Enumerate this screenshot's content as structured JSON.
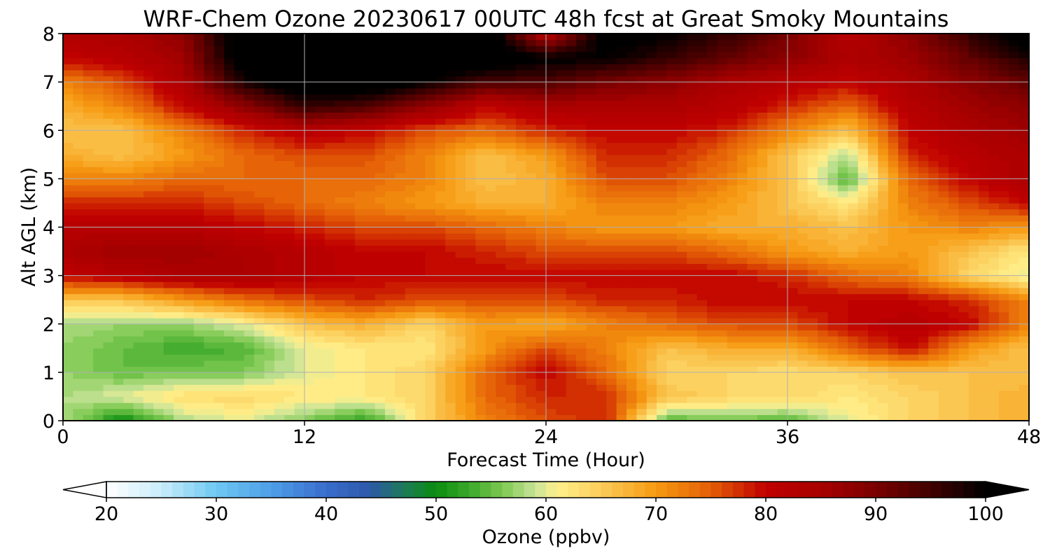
{
  "chart_data": {
    "type": "heatmap",
    "title": "WRF-Chem Ozone  20230617 00UTC 48h fcst at Great Smoky Mountains",
    "xlabel": "Forecast Time (Hour)",
    "ylabel": "Alt AGL (km)",
    "xlim": [
      0,
      48
    ],
    "ylim": [
      0,
      8
    ],
    "x_ticks": [
      0,
      12,
      24,
      36,
      48
    ],
    "y_ticks": [
      0,
      1,
      2,
      3,
      4,
      5,
      6,
      7,
      8
    ],
    "grid": true,
    "x": [
      0,
      3,
      6,
      9,
      12,
      15,
      18,
      21,
      24,
      27,
      30,
      33,
      36,
      39,
      42,
      45,
      48
    ],
    "y": [
      0,
      0.5,
      1,
      1.5,
      2,
      2.5,
      3,
      3.5,
      4,
      4.5,
      5,
      5.5,
      6,
      6.5,
      7,
      7.5,
      8
    ],
    "z": [
      [
        58,
        50,
        58,
        60,
        56,
        52,
        64,
        72,
        76,
        78,
        54,
        56,
        54,
        60,
        64,
        66,
        68
      ],
      [
        58,
        60,
        63,
        64,
        62,
        62,
        64,
        74,
        78,
        78,
        66,
        64,
        64,
        62,
        64,
        66,
        68
      ],
      [
        57,
        55,
        56,
        56,
        60,
        62,
        64,
        74,
        80,
        74,
        64,
        64,
        63,
        64,
        66,
        66,
        66
      ],
      [
        57,
        55,
        53,
        54,
        60,
        62,
        62,
        70,
        76,
        72,
        66,
        68,
        68,
        74,
        80,
        70,
        66
      ],
      [
        58,
        57,
        57,
        60,
        66,
        68,
        64,
        70,
        68,
        72,
        74,
        76,
        76,
        80,
        82,
        80,
        72
      ],
      [
        66,
        66,
        70,
        74,
        76,
        78,
        76,
        76,
        76,
        78,
        78,
        80,
        80,
        80,
        80,
        78,
        72
      ],
      [
        80,
        82,
        84,
        84,
        82,
        80,
        80,
        80,
        80,
        80,
        80,
        80,
        78,
        74,
        72,
        64,
        60
      ],
      [
        84,
        86,
        86,
        84,
        82,
        80,
        80,
        78,
        76,
        76,
        76,
        74,
        70,
        68,
        70,
        66,
        62
      ],
      [
        82,
        82,
        82,
        80,
        78,
        76,
        76,
        74,
        72,
        70,
        70,
        68,
        68,
        66,
        70,
        72,
        70
      ],
      [
        78,
        78,
        78,
        76,
        74,
        72,
        70,
        68,
        68,
        72,
        72,
        70,
        66,
        62,
        72,
        76,
        80
      ],
      [
        72,
        72,
        74,
        74,
        74,
        74,
        72,
        66,
        68,
        76,
        76,
        72,
        66,
        54,
        74,
        80,
        84
      ],
      [
        68,
        66,
        70,
        74,
        76,
        76,
        72,
        66,
        70,
        78,
        78,
        74,
        66,
        58,
        78,
        82,
        84
      ],
      [
        66,
        66,
        72,
        78,
        82,
        80,
        76,
        74,
        78,
        80,
        80,
        78,
        72,
        66,
        80,
        84,
        86
      ],
      [
        68,
        72,
        80,
        88,
        96,
        94,
        88,
        80,
        84,
        84,
        84,
        82,
        78,
        74,
        82,
        86,
        88
      ],
      [
        72,
        76,
        84,
        98,
        104,
        104,
        100,
        94,
        94,
        90,
        88,
        84,
        82,
        80,
        84,
        88,
        92
      ],
      [
        80,
        82,
        86,
        104,
        106,
        106,
        104,
        104,
        100,
        100,
        96,
        92,
        88,
        84,
        86,
        92,
        98
      ],
      [
        84,
        84,
        88,
        104,
        106,
        106,
        104,
        104,
        82,
        102,
        100,
        96,
        90,
        82,
        88,
        96,
        102
      ]
    ],
    "colorbar": {
      "label": "Ozone  (ppbv)",
      "min": 20,
      "max": 100,
      "ticks": [
        20,
        30,
        40,
        50,
        60,
        70,
        80,
        90,
        100
      ],
      "extend": "both",
      "stops": [
        {
          "v": 20,
          "c": "#ffffff"
        },
        {
          "v": 25,
          "c": "#c8ecfb"
        },
        {
          "v": 30,
          "c": "#6ec8f2"
        },
        {
          "v": 35,
          "c": "#4e9ee8"
        },
        {
          "v": 40,
          "c": "#3a6ccc"
        },
        {
          "v": 44,
          "c": "#2c58a8"
        },
        {
          "v": 47,
          "c": "#1d7a5a"
        },
        {
          "v": 50,
          "c": "#0a8c10"
        },
        {
          "v": 53,
          "c": "#3aa82a"
        },
        {
          "v": 56,
          "c": "#7cc850"
        },
        {
          "v": 59,
          "c": "#c8e498"
        },
        {
          "v": 61,
          "c": "#fff08c"
        },
        {
          "v": 65,
          "c": "#fccc5a"
        },
        {
          "v": 70,
          "c": "#f69a12"
        },
        {
          "v": 75,
          "c": "#e45e06"
        },
        {
          "v": 80,
          "c": "#c00000"
        },
        {
          "v": 85,
          "c": "#a80000"
        },
        {
          "v": 90,
          "c": "#7a0000"
        },
        {
          "v": 95,
          "c": "#400000"
        },
        {
          "v": 100,
          "c": "#000000"
        }
      ]
    }
  }
}
